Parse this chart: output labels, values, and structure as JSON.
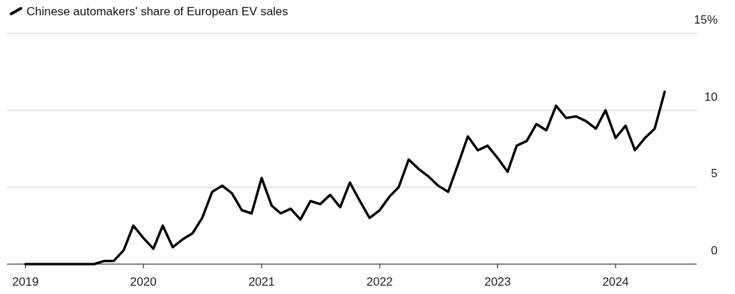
{
  "chart_data": {
    "type": "line",
    "x": [
      "2019-01",
      "2019-02",
      "2019-03",
      "2019-04",
      "2019-05",
      "2019-06",
      "2019-07",
      "2019-08",
      "2019-09",
      "2019-10",
      "2019-11",
      "2019-12",
      "2020-01",
      "2020-02",
      "2020-03",
      "2020-04",
      "2020-05",
      "2020-06",
      "2020-07",
      "2020-08",
      "2020-09",
      "2020-10",
      "2020-11",
      "2020-12",
      "2021-01",
      "2021-02",
      "2021-03",
      "2021-04",
      "2021-05",
      "2021-06",
      "2021-07",
      "2021-08",
      "2021-09",
      "2021-10",
      "2021-11",
      "2021-12",
      "2022-01",
      "2022-02",
      "2022-03",
      "2022-04",
      "2022-05",
      "2022-06",
      "2022-07",
      "2022-08",
      "2022-09",
      "2022-10",
      "2022-11",
      "2022-12",
      "2023-01",
      "2023-02",
      "2023-03",
      "2023-04",
      "2023-05",
      "2023-06",
      "2023-07",
      "2023-08",
      "2023-09",
      "2023-10",
      "2023-11",
      "2023-12",
      "2024-01",
      "2024-02",
      "2024-03",
      "2024-04",
      "2024-05",
      "2024-06"
    ],
    "series": [
      {
        "name": "Chinese automakers' share of European EV sales",
        "color": "#000000",
        "values": [
          0,
          0,
          0,
          0,
          0,
          0,
          0,
          0,
          0.2,
          0.2,
          0.9,
          2.5,
          1.7,
          1.0,
          2.5,
          1.1,
          1.6,
          2.0,
          3.0,
          4.7,
          5.1,
          4.6,
          3.5,
          3.3,
          5.6,
          3.8,
          3.3,
          3.6,
          2.9,
          4.1,
          3.9,
          4.5,
          3.7,
          5.3,
          4.1,
          3.0,
          3.5,
          4.4,
          5.0,
          6.8,
          6.2,
          5.7,
          5.1,
          4.7,
          6.5,
          8.3,
          7.4,
          7.7,
          6.9,
          6.0,
          7.7,
          8.0,
          9.1,
          8.7,
          10.3,
          9.5,
          9.6,
          9.3,
          8.8,
          10.0,
          8.2,
          9.0,
          7.4,
          8.2,
          8.8,
          11.2
        ]
      }
    ],
    "xlim": [
      "2018-11-05",
      "2024-09-08"
    ],
    "xticks": [
      "2019",
      "2020",
      "2021",
      "2022",
      "2023",
      "2024"
    ],
    "ylim": [
      0,
      15
    ],
    "yticks": [
      0,
      5,
      10,
      {
        "value": 15,
        "label": "15%"
      }
    ],
    "grid": "y",
    "legend": "top left",
    "marker": "none",
    "line_style": "solid"
  }
}
